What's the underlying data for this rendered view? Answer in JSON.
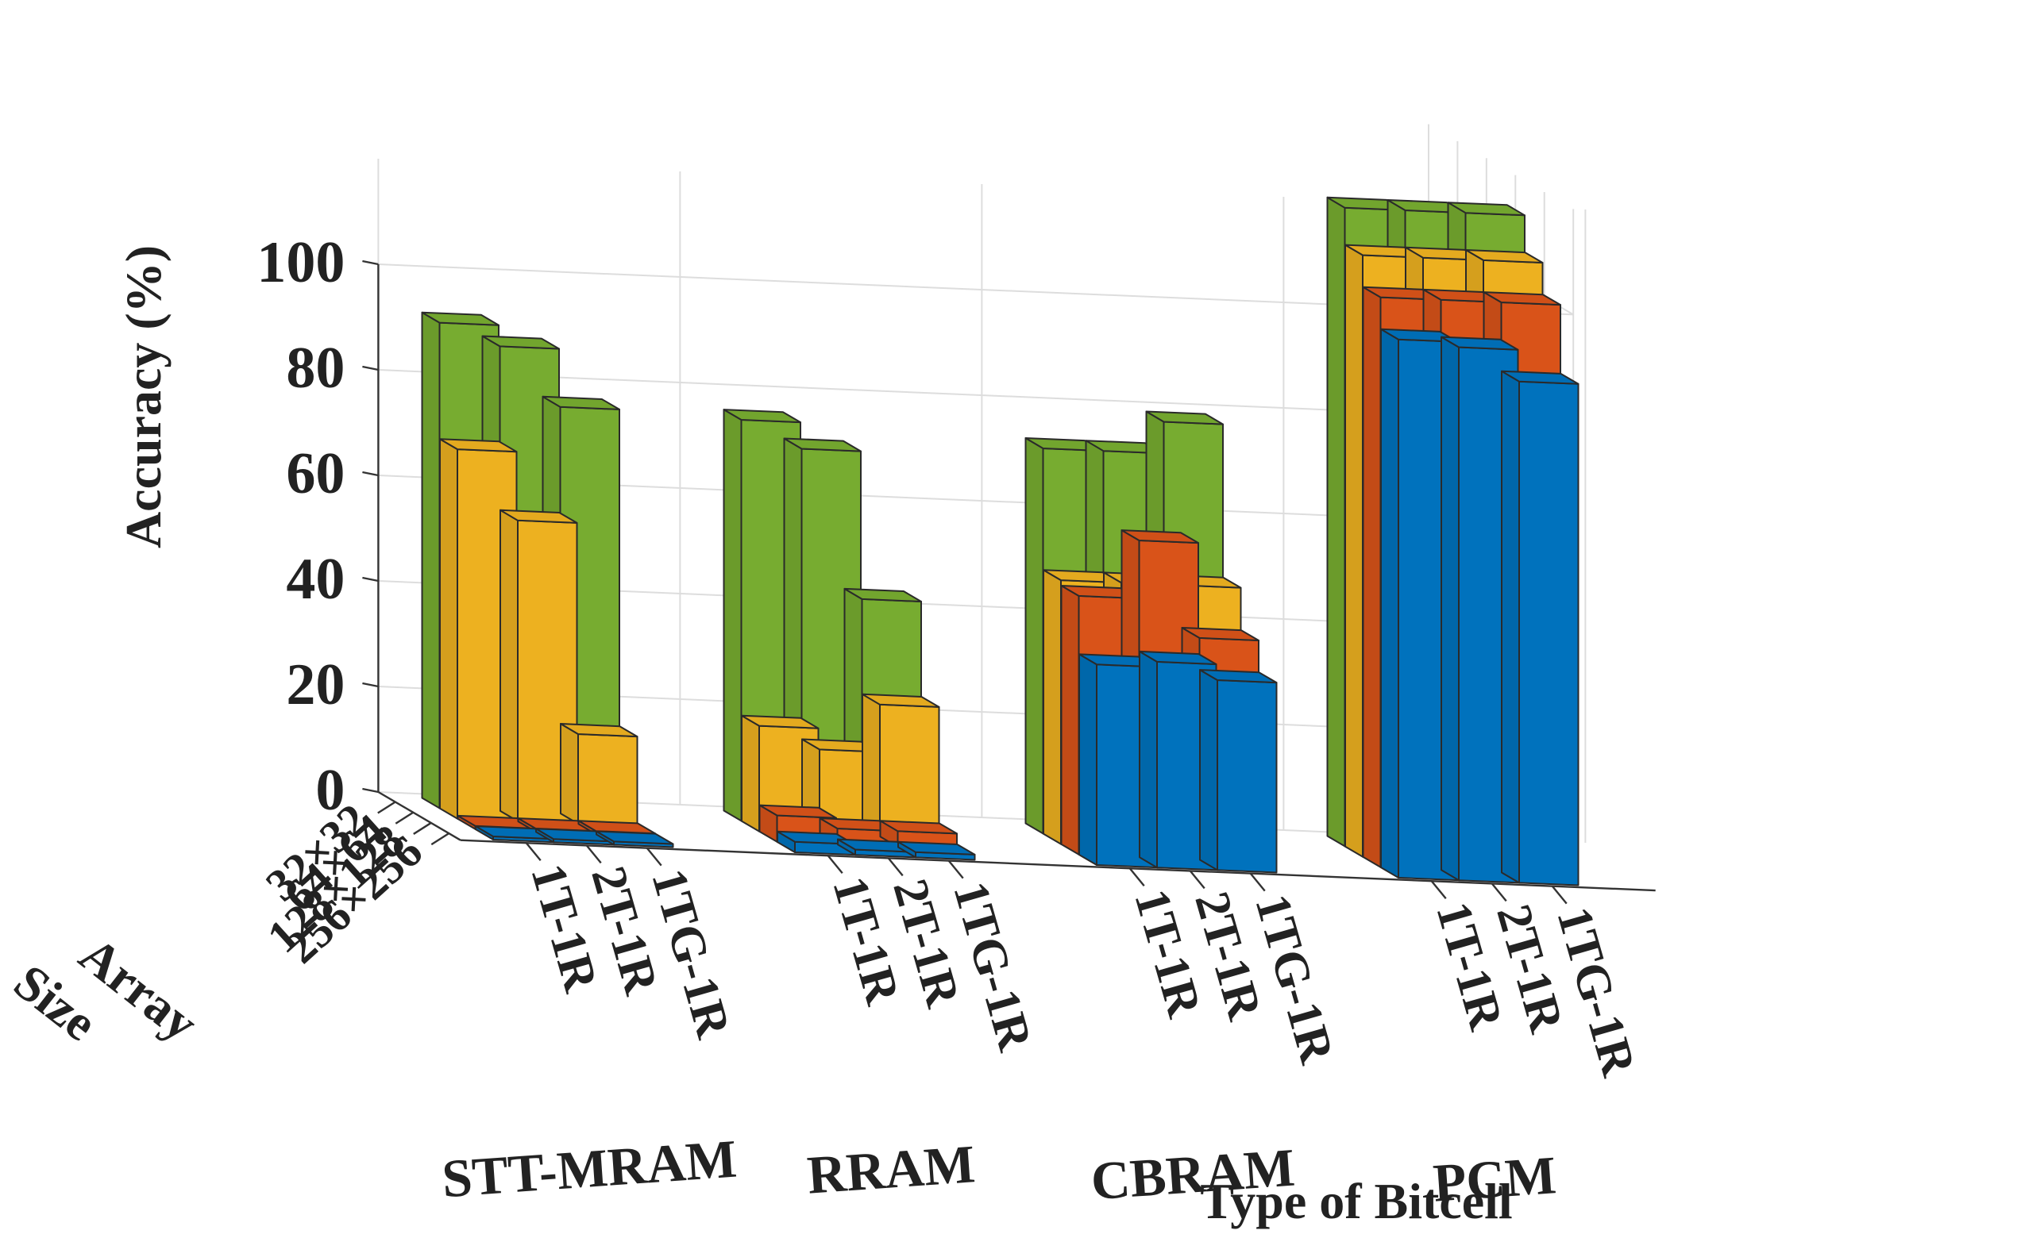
{
  "chart_data": {
    "type": "bar",
    "subtype": "3d-grouped-bar",
    "xlabel": "Type of Bitcell",
    "ylabel": "Accuracy (%)",
    "depth_label": "Array Size",
    "ylim": [
      0,
      100
    ],
    "yticks": [
      "0",
      "20",
      "40",
      "60",
      "80",
      "100"
    ],
    "groups": [
      "STT-MRAM",
      "RRAM",
      "CBRAM",
      "PCM"
    ],
    "categories": [
      "1T-1R",
      "2T-1R",
      "1TG-1R"
    ],
    "array_sizes": [
      "32×32",
      "64×64",
      "128×128",
      "256×256"
    ],
    "size_colors": [
      "#77ac30",
      "#edb120",
      "#d95319",
      "#0072bd"
    ],
    "series": [
      {
        "group": "STT-MRAM",
        "size": "32×32",
        "values": [
          92,
          88,
          77
        ]
      },
      {
        "group": "STT-MRAM",
        "size": "64×64",
        "values": [
          70,
          57,
          17
        ]
      },
      {
        "group": "STT-MRAM",
        "size": "128×128",
        "values": [
          0,
          0,
          0
        ]
      },
      {
        "group": "STT-MRAM",
        "size": "256×256",
        "values": [
          0,
          0,
          0
        ]
      },
      {
        "group": "RRAM",
        "size": "32×32",
        "values": [
          76,
          71,
          43
        ]
      },
      {
        "group": "RRAM",
        "size": "64×64",
        "values": [
          20,
          16,
          25
        ]
      },
      {
        "group": "RRAM",
        "size": "128×128",
        "values": [
          5,
          3,
          3
        ]
      },
      {
        "group": "RRAM",
        "size": "256×256",
        "values": [
          2,
          1,
          1
        ]
      },
      {
        "group": "CBRAM",
        "size": "32×32",
        "values": [
          73,
          73,
          79
        ]
      },
      {
        "group": "CBRAM",
        "size": "64×64",
        "values": [
          50,
          50,
          50
        ]
      },
      {
        "group": "CBRAM",
        "size": "128×128",
        "values": [
          49,
          60,
          42
        ]
      },
      {
        "group": "CBRAM",
        "size": "256×256",
        "values": [
          38,
          39,
          36
        ]
      },
      {
        "group": "PCM",
        "size": "32×32",
        "values": [
          121,
          121,
          121
        ]
      },
      {
        "group": "PCM",
        "size": "64×64",
        "values": [
          114,
          114,
          114
        ]
      },
      {
        "group": "PCM",
        "size": "128×128",
        "values": [
          108,
          108,
          108
        ]
      },
      {
        "group": "PCM",
        "size": "256×256",
        "values": [
          102,
          101,
          95
        ]
      }
    ],
    "grid": true,
    "legend": "none"
  }
}
